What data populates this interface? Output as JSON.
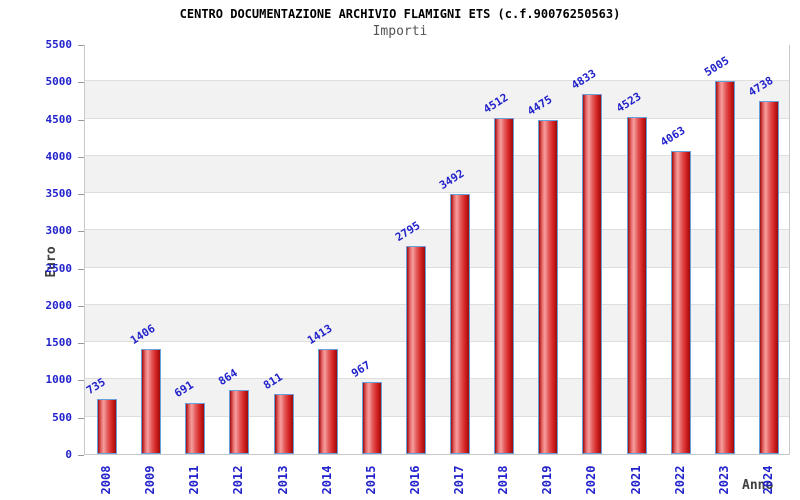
{
  "header": {
    "title": "CENTRO DOCUMENTAZIONE ARCHIVIO FLAMIGNI ETS (c.f.90076250563)",
    "subtitle": "Importi"
  },
  "chart_data": {
    "type": "bar",
    "title": "CENTRO DOCUMENTAZIONE ARCHIVIO FLAMIGNI ETS (c.f.90076250563)",
    "subtitle": "Importi",
    "xlabel": "Anno",
    "ylabel": "Euro",
    "categories": [
      "2008",
      "2009",
      "2011",
      "2012",
      "2013",
      "2014",
      "2015",
      "2016",
      "2017",
      "2018",
      "2019",
      "2020",
      "2021",
      "2022",
      "2023",
      "2024"
    ],
    "values": [
      735,
      1406,
      691,
      864,
      811,
      1413,
      967,
      2795,
      3492,
      4512,
      4475,
      4833,
      4523,
      4063,
      5005,
      4738
    ],
    "ylim": [
      0,
      5500
    ],
    "ytick_step": 500,
    "yticks": [
      0,
      500,
      1000,
      1500,
      2000,
      2500,
      3000,
      3500,
      4000,
      4500,
      5000,
      5500
    ],
    "grid": "horizontal",
    "legend_position": "none",
    "colors": {
      "label_blue": "#2222cc",
      "title_color": "#000000",
      "subtitle_color": "#555555",
      "axis_title_color": "#404040",
      "band_gray": "#f2f2f2",
      "band_white": "#ffffff",
      "grid_color": "#dedede",
      "plot_border": "#c9c9c9",
      "bar_border": "#66a0dd",
      "bar_gradient": [
        "#9c0c0c",
        "#e96a6a",
        "#f59e9e",
        "#e25555",
        "#d42222",
        "#9c0c0c"
      ]
    }
  }
}
